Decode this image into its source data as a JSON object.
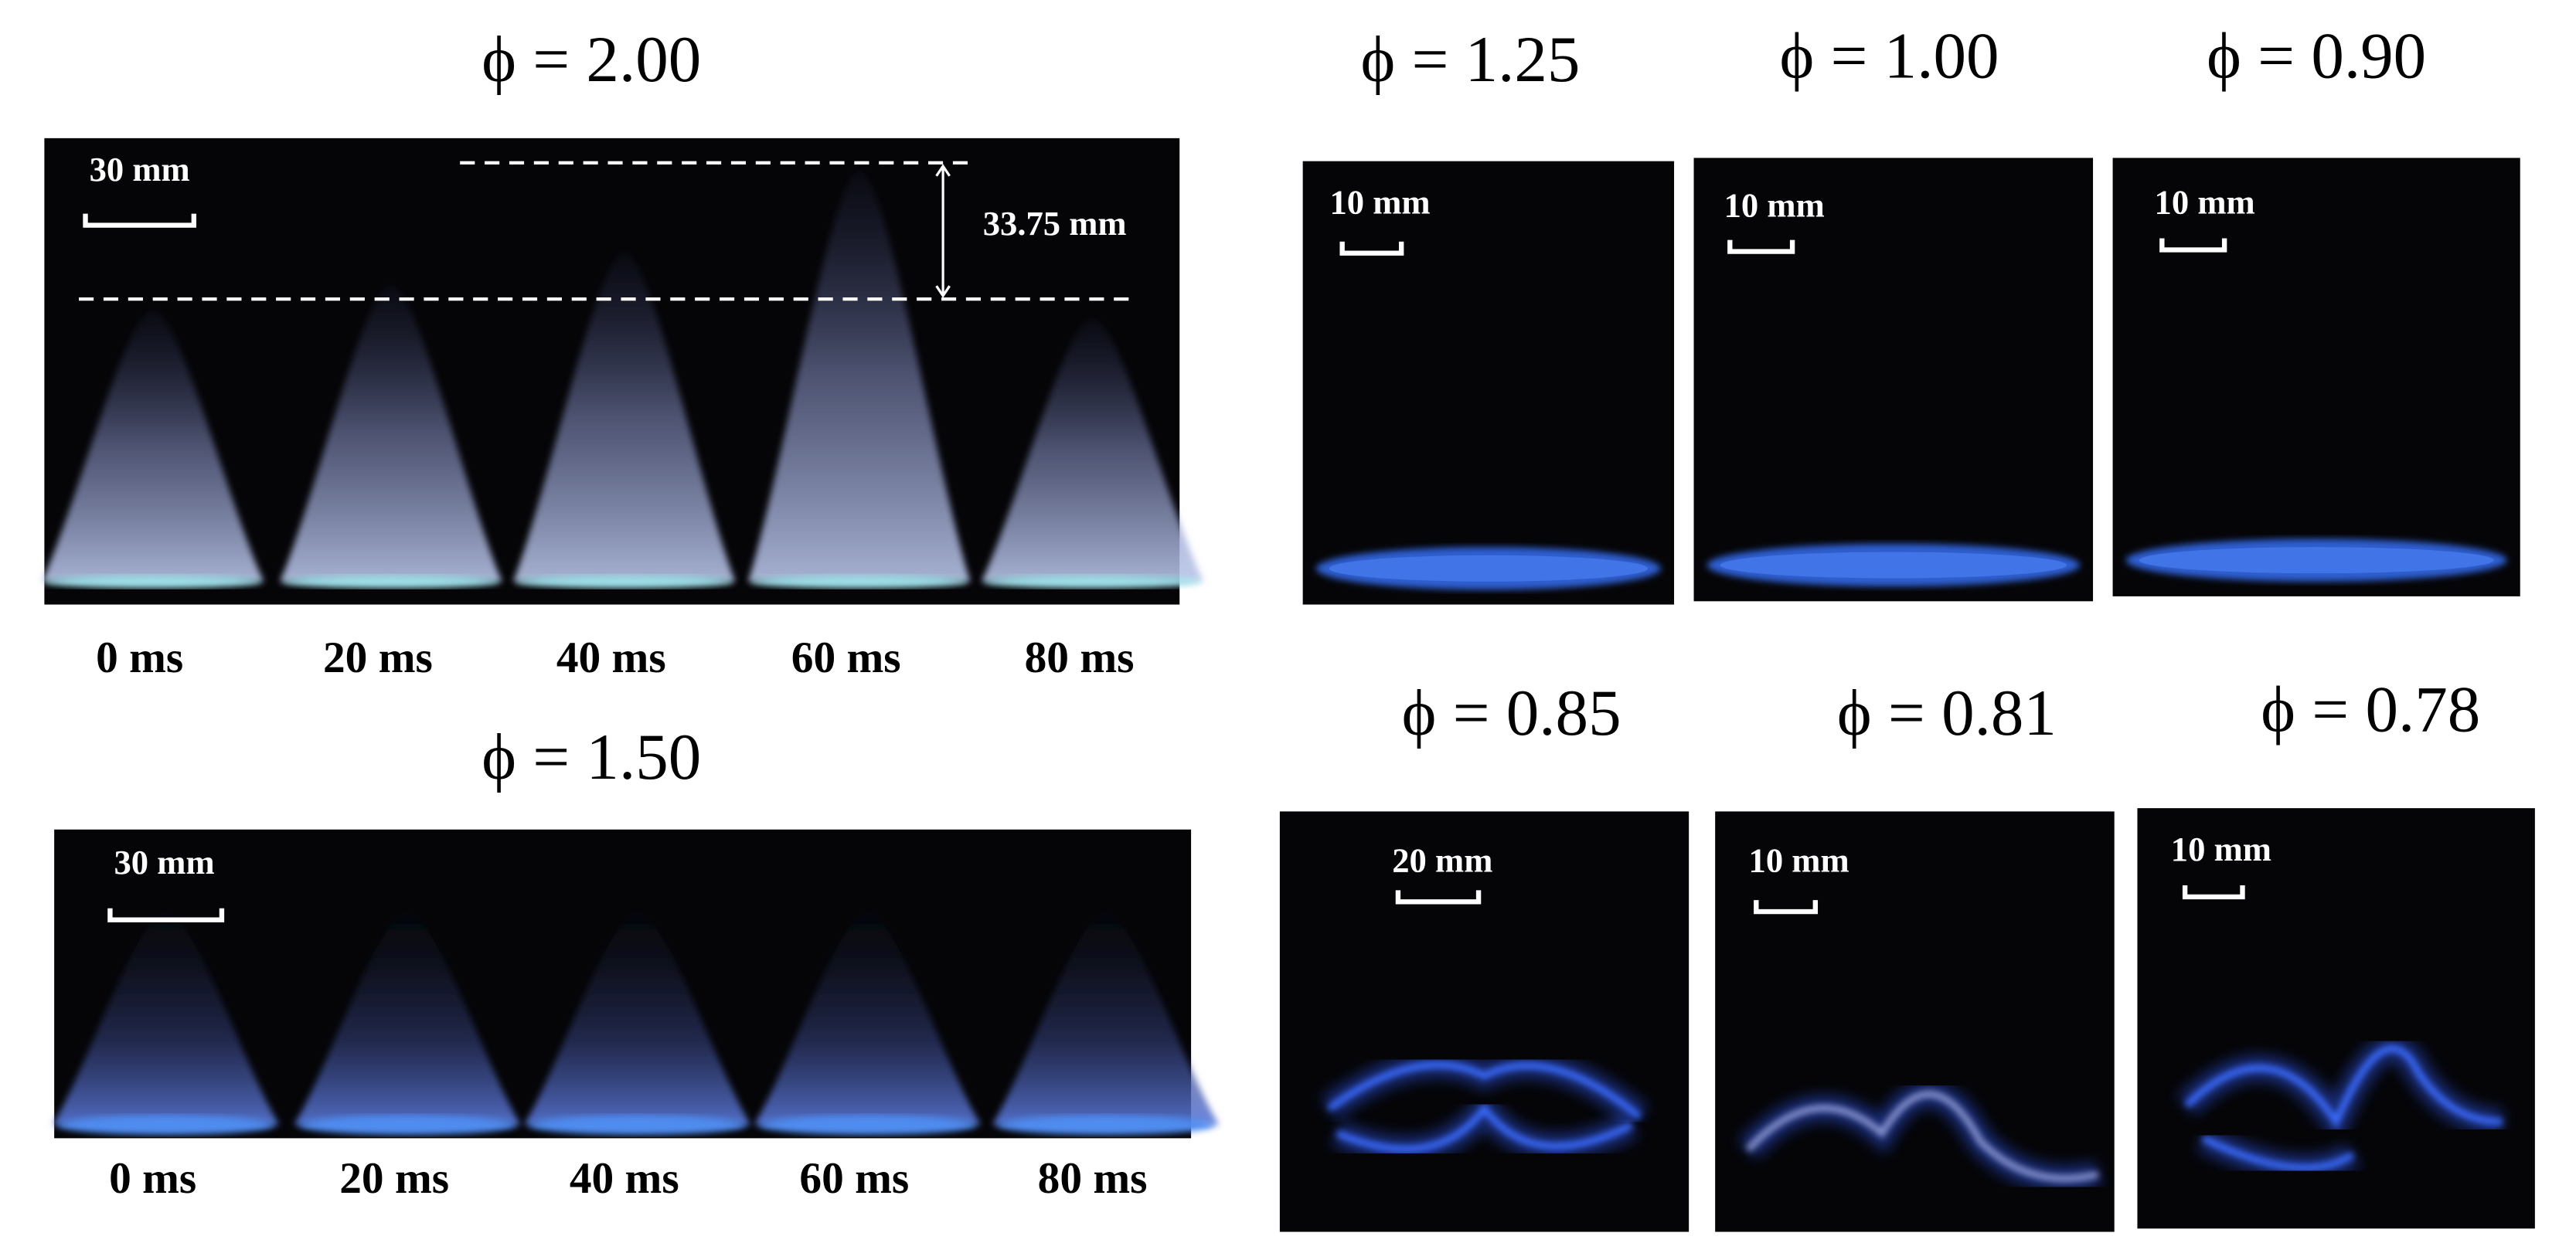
{
  "panels": [
    {
      "title": "ϕ = 2.00",
      "scale_bar": "30 mm",
      "height_label": "33.75 mm",
      "times": [
        "0 ms",
        "20 ms",
        "40 ms",
        "60 ms",
        "80 ms"
      ]
    },
    {
      "title": "ϕ = 1.50",
      "scale_bar": "30 mm",
      "times": [
        "0 ms",
        "20 ms",
        "40 ms",
        "60 ms",
        "80 ms"
      ]
    },
    {
      "title": "ϕ = 1.25",
      "scale_bar": "10 mm"
    },
    {
      "title": "ϕ = 1.00",
      "scale_bar": "10 mm"
    },
    {
      "title": "ϕ = 0.90",
      "scale_bar": "10 mm"
    },
    {
      "title": "ϕ = 0.85",
      "scale_bar": "20 mm"
    },
    {
      "title": "ϕ = 0.81",
      "scale_bar": "10 mm"
    },
    {
      "title": "ϕ = 0.78",
      "scale_bar": "10 mm"
    }
  ]
}
